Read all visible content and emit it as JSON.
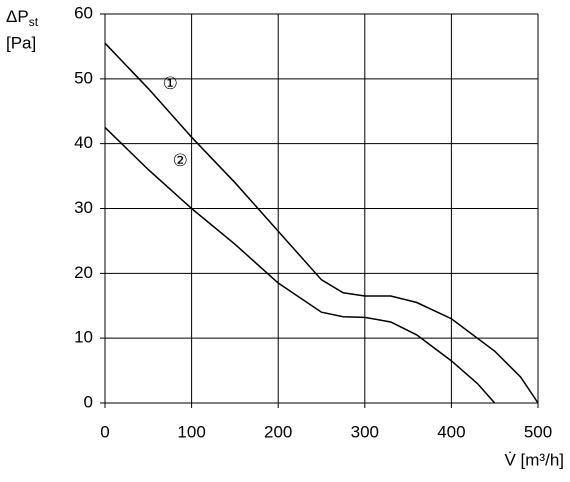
{
  "chart_data": {
    "type": "line",
    "ylabel": "ΔP",
    "ylabel_sub": "st",
    "ylabel_unit": "[Pa]",
    "xlabel": "V̇ [m³/h]",
    "xlim": [
      0,
      500
    ],
    "xticks": [
      0,
      100,
      200,
      300,
      400,
      500
    ],
    "ylim": [
      0,
      60
    ],
    "yticks": [
      0,
      10,
      20,
      30,
      40,
      50,
      60
    ],
    "grid": true,
    "series": [
      {
        "name": "①",
        "color": "#000000",
        "x": [
          0,
          50,
          100,
          150,
          200,
          250,
          275,
          300,
          330,
          360,
          400,
          450,
          480,
          500
        ],
        "values": [
          55.5,
          48.5,
          41,
          34,
          26.5,
          19,
          17,
          16.5,
          16.5,
          15.5,
          13,
          8,
          4,
          0
        ]
      },
      {
        "name": "②",
        "color": "#000000",
        "x": [
          0,
          50,
          100,
          150,
          200,
          250,
          275,
          300,
          330,
          360,
          400,
          430,
          450
        ],
        "values": [
          42.5,
          36,
          30,
          24.5,
          18.5,
          14,
          13.3,
          13.2,
          12.5,
          10.5,
          6.5,
          3,
          0
        ]
      }
    ]
  }
}
